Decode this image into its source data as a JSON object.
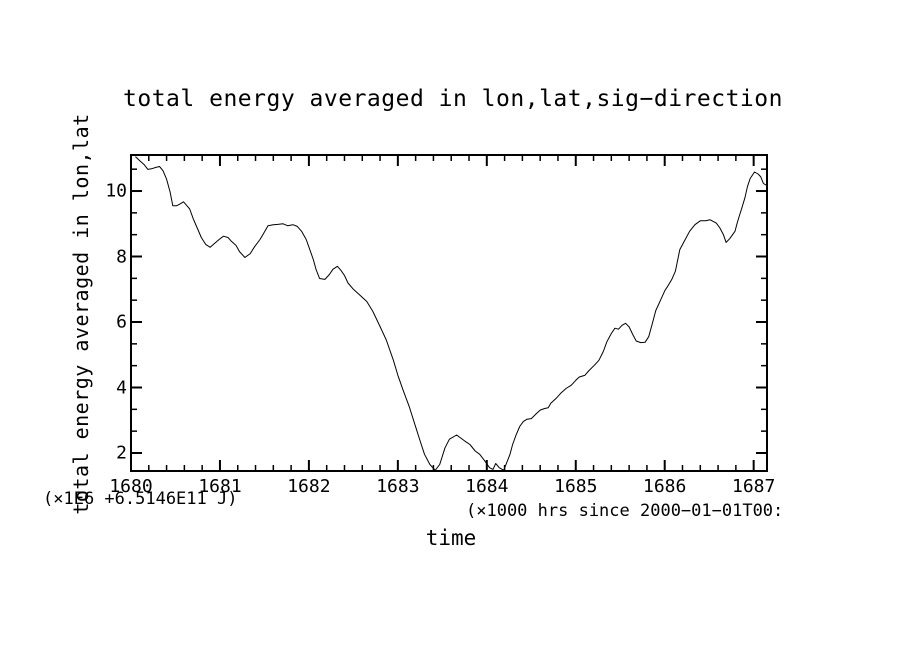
{
  "page": {
    "background_color": "#ffffff",
    "foreground_color": "#000000"
  },
  "chart_data": {
    "type": "line",
    "title": "total energy averaged in lon,lat,sig−direction",
    "xlabel": "time",
    "ylabel": "total energy averaged in lon,lat",
    "y_unit_note": "(×1E6 +6.5146E11 J)",
    "x_unit_note": "(×1000 hrs  since 2000−01−01T00:",
    "grid": false,
    "legend": "none",
    "line_color": "#000000",
    "frame_color": "#000000",
    "xlim": [
      1680,
      1687.15
    ],
    "ylim": [
      1.45,
      11.1
    ],
    "x_major_ticks": [
      1680,
      1681,
      1682,
      1683,
      1684,
      1685,
      1686,
      1687
    ],
    "x_tick_labels": [
      "1680",
      "1681",
      "1682",
      "1683",
      "1684",
      "1685",
      "1686",
      "1687"
    ],
    "x_minor_ticks": [
      1680.2,
      1680.4,
      1680.6,
      1680.8,
      1681.2,
      1681.4,
      1681.6,
      1681.8,
      1682.2,
      1682.4,
      1682.6,
      1682.8,
      1683.2,
      1683.4,
      1683.6,
      1683.8,
      1684.2,
      1684.4,
      1684.6,
      1684.8,
      1685.2,
      1685.4,
      1685.6,
      1685.8,
      1686.2,
      1686.4,
      1686.6,
      1686.8
    ],
    "y_major_ticks": [
      2,
      4,
      6,
      8,
      10
    ],
    "y_tick_labels": [
      "2",
      "4",
      "6",
      "8",
      "10"
    ],
    "y_minor_ticks": [
      2.667,
      3.333,
      4.667,
      5.333,
      6.667,
      7.333,
      8.667,
      9.333,
      10.667
    ],
    "series": [
      {
        "name": "total energy averaged in lon,lat,sig-direction",
        "points": [
          [
            1680.05,
            11.05
          ],
          [
            1680.1,
            10.92
          ],
          [
            1680.15,
            10.8
          ],
          [
            1680.19,
            10.66
          ],
          [
            1680.23,
            10.68
          ],
          [
            1680.28,
            10.72
          ],
          [
            1680.32,
            10.75
          ],
          [
            1680.36,
            10.62
          ],
          [
            1680.4,
            10.36
          ],
          [
            1680.44,
            9.97
          ],
          [
            1680.47,
            9.55
          ],
          [
            1680.51,
            9.55
          ],
          [
            1680.55,
            9.6
          ],
          [
            1680.59,
            9.67
          ],
          [
            1680.63,
            9.55
          ],
          [
            1680.66,
            9.45
          ],
          [
            1680.7,
            9.15
          ],
          [
            1680.74,
            8.9
          ],
          [
            1680.79,
            8.58
          ],
          [
            1680.84,
            8.37
          ],
          [
            1680.89,
            8.28
          ],
          [
            1680.94,
            8.4
          ],
          [
            1680.99,
            8.52
          ],
          [
            1681.04,
            8.62
          ],
          [
            1681.09,
            8.58
          ],
          [
            1681.13,
            8.46
          ],
          [
            1681.18,
            8.34
          ],
          [
            1681.22,
            8.15
          ],
          [
            1681.28,
            7.97
          ],
          [
            1681.34,
            8.09
          ],
          [
            1681.39,
            8.3
          ],
          [
            1681.45,
            8.52
          ],
          [
            1681.49,
            8.7
          ],
          [
            1681.54,
            8.94
          ],
          [
            1681.6,
            8.97
          ],
          [
            1681.65,
            8.98
          ],
          [
            1681.71,
            9.0
          ],
          [
            1681.76,
            8.94
          ],
          [
            1681.82,
            8.97
          ],
          [
            1681.87,
            8.92
          ],
          [
            1681.92,
            8.76
          ],
          [
            1681.97,
            8.52
          ],
          [
            1682.01,
            8.21
          ],
          [
            1682.05,
            7.91
          ],
          [
            1682.08,
            7.61
          ],
          [
            1682.12,
            7.33
          ],
          [
            1682.18,
            7.3
          ],
          [
            1682.23,
            7.45
          ],
          [
            1682.27,
            7.61
          ],
          [
            1682.32,
            7.7
          ],
          [
            1682.36,
            7.58
          ],
          [
            1682.4,
            7.42
          ],
          [
            1682.44,
            7.19
          ],
          [
            1682.5,
            7.0
          ],
          [
            1682.55,
            6.88
          ],
          [
            1682.6,
            6.75
          ],
          [
            1682.65,
            6.63
          ],
          [
            1682.72,
            6.32
          ],
          [
            1682.8,
            5.86
          ],
          [
            1682.87,
            5.45
          ],
          [
            1682.95,
            4.83
          ],
          [
            1683.0,
            4.37
          ],
          [
            1683.06,
            3.91
          ],
          [
            1683.13,
            3.4
          ],
          [
            1683.19,
            2.88
          ],
          [
            1683.25,
            2.37
          ],
          [
            1683.3,
            1.96
          ],
          [
            1683.36,
            1.65
          ],
          [
            1683.42,
            1.47
          ],
          [
            1683.47,
            1.65
          ],
          [
            1683.53,
            2.16
          ],
          [
            1683.58,
            2.42
          ],
          [
            1683.66,
            2.55
          ],
          [
            1683.75,
            2.37
          ],
          [
            1683.81,
            2.26
          ],
          [
            1683.87,
            2.06
          ],
          [
            1683.92,
            1.96
          ],
          [
            1683.98,
            1.75
          ],
          [
            1684.03,
            1.55
          ],
          [
            1684.07,
            1.5
          ],
          [
            1684.1,
            1.68
          ],
          [
            1684.14,
            1.55
          ],
          [
            1684.19,
            1.47
          ],
          [
            1684.26,
            1.95
          ],
          [
            1684.29,
            2.26
          ],
          [
            1684.33,
            2.56
          ],
          [
            1684.37,
            2.81
          ],
          [
            1684.41,
            2.96
          ],
          [
            1684.45,
            3.03
          ],
          [
            1684.5,
            3.05
          ],
          [
            1684.56,
            3.21
          ],
          [
            1684.6,
            3.31
          ],
          [
            1684.65,
            3.36
          ],
          [
            1684.69,
            3.38
          ],
          [
            1684.72,
            3.52
          ],
          [
            1684.78,
            3.67
          ],
          [
            1684.83,
            3.82
          ],
          [
            1684.89,
            3.97
          ],
          [
            1684.95,
            4.07
          ],
          [
            1685.0,
            4.22
          ],
          [
            1685.04,
            4.32
          ],
          [
            1685.1,
            4.37
          ],
          [
            1685.15,
            4.52
          ],
          [
            1685.21,
            4.68
          ],
          [
            1685.26,
            4.83
          ],
          [
            1685.31,
            5.1
          ],
          [
            1685.35,
            5.4
          ],
          [
            1685.4,
            5.65
          ],
          [
            1685.44,
            5.81
          ],
          [
            1685.48,
            5.78
          ],
          [
            1685.52,
            5.9
          ],
          [
            1685.56,
            5.96
          ],
          [
            1685.6,
            5.85
          ],
          [
            1685.64,
            5.62
          ],
          [
            1685.68,
            5.42
          ],
          [
            1685.73,
            5.37
          ],
          [
            1685.78,
            5.38
          ],
          [
            1685.82,
            5.55
          ],
          [
            1685.86,
            5.95
          ],
          [
            1685.9,
            6.35
          ],
          [
            1685.95,
            6.65
          ],
          [
            1686.0,
            6.95
          ],
          [
            1686.04,
            7.12
          ],
          [
            1686.08,
            7.3
          ],
          [
            1686.12,
            7.55
          ],
          [
            1686.17,
            8.21
          ],
          [
            1686.23,
            8.52
          ],
          [
            1686.28,
            8.77
          ],
          [
            1686.34,
            8.97
          ],
          [
            1686.4,
            9.09
          ],
          [
            1686.46,
            9.09
          ],
          [
            1686.51,
            9.12
          ],
          [
            1686.58,
            9.02
          ],
          [
            1686.62,
            8.87
          ],
          [
            1686.66,
            8.67
          ],
          [
            1686.69,
            8.43
          ],
          [
            1686.73,
            8.54
          ],
          [
            1686.79,
            8.77
          ],
          [
            1686.82,
            9.07
          ],
          [
            1686.86,
            9.42
          ],
          [
            1686.9,
            9.78
          ],
          [
            1686.93,
            10.13
          ],
          [
            1686.96,
            10.38
          ],
          [
            1687.01,
            10.58
          ],
          [
            1687.05,
            10.52
          ],
          [
            1687.08,
            10.43
          ],
          [
            1687.11,
            10.23
          ],
          [
            1687.14,
            10.18
          ]
        ]
      }
    ]
  }
}
